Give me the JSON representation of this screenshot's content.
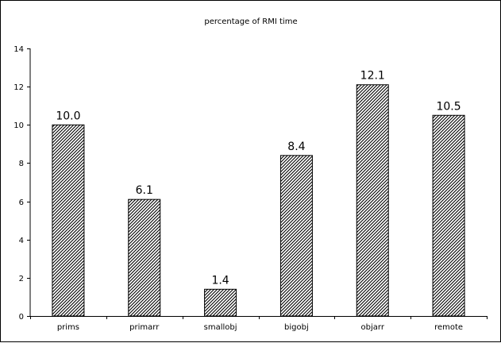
{
  "chart_data": {
    "type": "bar",
    "title": "percentage of RMI time",
    "xlabel": "",
    "ylabel": "",
    "categories": [
      "prims",
      "primarr",
      "smallobj",
      "bigobj",
      "objarr",
      "remote"
    ],
    "values": [
      10.0,
      6.1,
      1.4,
      8.4,
      12.1,
      10.5
    ],
    "data_labels": [
      "10.0",
      "6.1",
      "1.4",
      "8.4",
      "12.1",
      "10.5"
    ],
    "ylim": [
      0,
      14
    ],
    "yticks": [
      0,
      2,
      4,
      6,
      8,
      10,
      12,
      14
    ],
    "grid": false,
    "legend": "none",
    "bar_fill": "diagonal-hatch",
    "colors": {
      "bar_stroke": "#000000",
      "hatch": "#000000",
      "background": "#ffffff"
    }
  }
}
